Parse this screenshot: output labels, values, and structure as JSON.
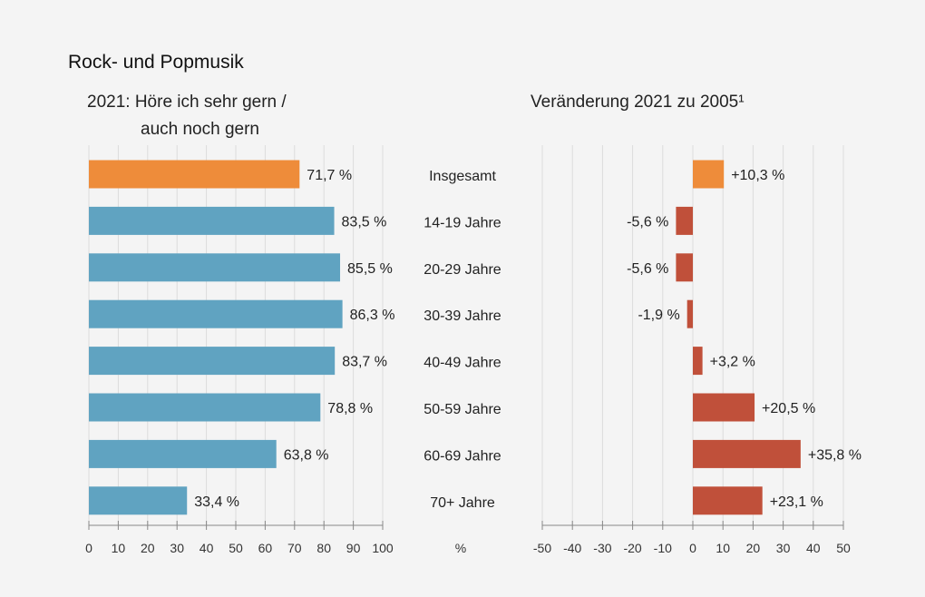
{
  "chart_data": [
    {
      "type": "bar",
      "orientation": "horizontal",
      "title": "Rock- und Popmusik",
      "subtitle_lines": [
        "2021: Höre ich sehr gern /",
        "auch noch gern"
      ],
      "categories": [
        "Insgesamt",
        "14-19 Jahre",
        "20-29 Jahre",
        "30-39 Jahre",
        "40-49 Jahre",
        "50-59 Jahre",
        "60-69 Jahre",
        "70+ Jahre"
      ],
      "values": [
        71.7,
        83.5,
        85.5,
        86.3,
        83.7,
        78.8,
        63.8,
        33.4
      ],
      "labels": [
        "71,7 %",
        "83,5 %",
        "85,5 %",
        "86,3 %",
        "83,7 %",
        "78,8 %",
        "63,8 %",
        "33,4 %"
      ],
      "xlim": [
        0,
        100
      ],
      "xticks": [
        0,
        10,
        20,
        30,
        40,
        50,
        60,
        70,
        80,
        90,
        100
      ],
      "xlabel": "%",
      "grid": true,
      "colors": {
        "total": "#ee8c3a",
        "groups": "#60a3c1"
      }
    },
    {
      "type": "bar",
      "orientation": "horizontal",
      "title": "Veränderung 2021 zu 2005¹",
      "categories": [
        "Insgesamt",
        "14-19 Jahre",
        "20-29 Jahre",
        "30-39 Jahre",
        "40-49 Jahre",
        "50-59 Jahre",
        "60-69 Jahre",
        "70+ Jahre"
      ],
      "values": [
        10.3,
        -5.6,
        -5.6,
        -1.9,
        3.2,
        20.5,
        35.8,
        23.1
      ],
      "labels": [
        "+10,3 %",
        "-5,6 %",
        "-5,6 %",
        "-1,9 %",
        "+3,2 %",
        "+20,5 %",
        "+35,8 %",
        "+23,1 %"
      ],
      "xlim": [
        -50,
        50
      ],
      "xticks": [
        -50,
        -40,
        -30,
        -20,
        -10,
        0,
        10,
        20,
        30,
        40,
        50
      ],
      "grid": true,
      "colors": {
        "total": "#ee8c3a",
        "groups": "#c0503a"
      }
    }
  ]
}
